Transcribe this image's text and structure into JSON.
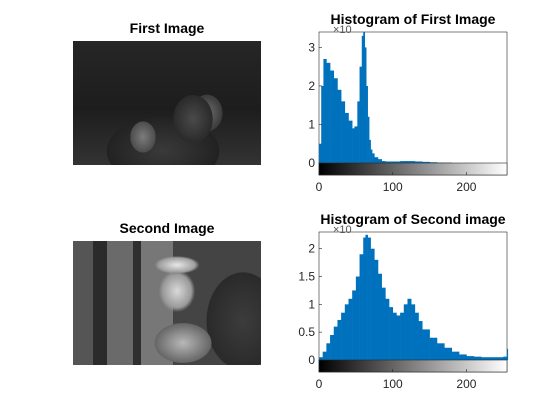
{
  "figure": {
    "titles": {
      "img1": "First Image",
      "img2": "Second Image",
      "hist1": "Histogram of First Image",
      "hist2": "Histogram of Second image"
    }
  },
  "chart_data": [
    {
      "type": "bar",
      "title": "Histogram of First Image",
      "xlabel": "",
      "ylabel": "",
      "xlim": [
        0,
        255
      ],
      "ylim": [
        0,
        3.4
      ],
      "y_exponent_label": "×10",
      "xticks": [
        0,
        100,
        200
      ],
      "yticks": [
        0,
        1,
        2,
        3
      ],
      "color": "#0072BD",
      "x": [
        0,
        3,
        6,
        10,
        15,
        20,
        25,
        30,
        35,
        40,
        45,
        48,
        52,
        55,
        58,
        60,
        62,
        64,
        66,
        68,
        70,
        72,
        75,
        80,
        85,
        90,
        100,
        110,
        120,
        130,
        140,
        150,
        160,
        170,
        180,
        200,
        255
      ],
      "values": [
        0.5,
        2.0,
        2.7,
        2.6,
        2.4,
        2.2,
        1.9,
        1.6,
        1.3,
        1.1,
        0.9,
        0.95,
        1.6,
        2.5,
        3.3,
        3.4,
        3.0,
        2.0,
        1.2,
        0.6,
        0.35,
        0.25,
        0.15,
        0.1,
        0.05,
        0.04,
        0.04,
        0.05,
        0.05,
        0.04,
        0.03,
        0.02,
        0.01,
        0.01,
        0.0,
        0.0,
        0.0
      ]
    },
    {
      "type": "bar",
      "title": "Histogram of Second image",
      "xlabel": "",
      "ylabel": "",
      "xlim": [
        0,
        255
      ],
      "ylim": [
        0,
        2.3
      ],
      "y_exponent_label": "×10",
      "xticks": [
        0,
        100,
        200
      ],
      "yticks": [
        0,
        0.5,
        1,
        1.5,
        2
      ],
      "color": "#0072BD",
      "x": [
        0,
        5,
        10,
        15,
        20,
        25,
        30,
        35,
        40,
        45,
        50,
        55,
        60,
        63,
        66,
        70,
        75,
        80,
        85,
        90,
        95,
        100,
        105,
        110,
        115,
        120,
        125,
        130,
        135,
        140,
        150,
        160,
        170,
        180,
        190,
        200,
        210,
        220,
        230,
        240,
        250,
        255
      ],
      "values": [
        0.05,
        0.15,
        0.3,
        0.45,
        0.6,
        0.72,
        0.85,
        1.0,
        1.1,
        1.25,
        1.5,
        1.9,
        2.2,
        2.25,
        2.2,
        2.0,
        1.8,
        1.55,
        1.3,
        1.1,
        0.95,
        0.85,
        0.8,
        0.85,
        1.0,
        1.1,
        1.0,
        0.85,
        0.7,
        0.55,
        0.4,
        0.3,
        0.22,
        0.15,
        0.1,
        0.07,
        0.06,
        0.05,
        0.05,
        0.05,
        0.06,
        0.2
      ]
    }
  ]
}
